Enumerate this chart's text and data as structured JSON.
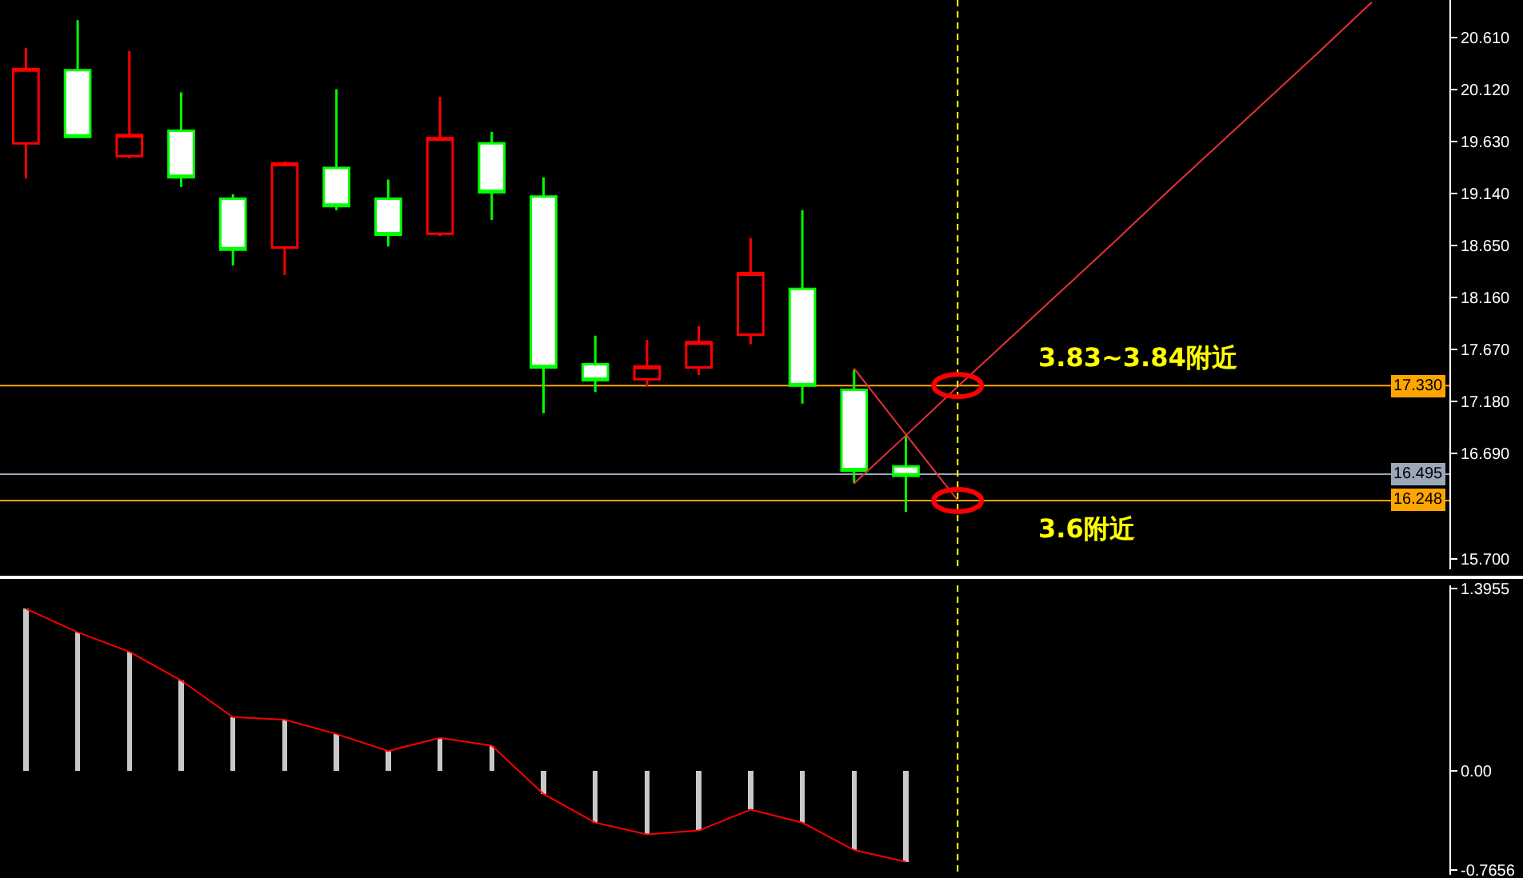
{
  "chart_data": [
    {
      "type": "candlestick",
      "categories": [
        null,
        null,
        null,
        null,
        null,
        null,
        null,
        null,
        null,
        null,
        null,
        null,
        null,
        null,
        null,
        null,
        null,
        null,
        null,
        null,
        null,
        null,
        null,
        null,
        null,
        null,
        null,
        null
      ],
      "ohlc": [
        [
          19.61,
          20.51,
          19.28,
          20.31
        ],
        [
          20.3,
          20.77,
          19.67,
          19.67
        ],
        [
          19.49,
          20.48,
          19.47,
          19.69
        ],
        [
          19.73,
          20.09,
          19.2,
          19.29
        ],
        [
          19.09,
          19.13,
          18.46,
          18.61
        ],
        [
          18.63,
          19.44,
          18.37,
          19.42
        ],
        [
          19.38,
          20.12,
          18.98,
          19.02
        ],
        [
          19.09,
          19.27,
          18.64,
          18.75
        ],
        [
          18.76,
          20.05,
          18.74,
          19.66
        ],
        [
          19.61,
          19.72,
          18.89,
          19.15
        ],
        [
          19.11,
          19.29,
          17.07,
          17.5
        ],
        [
          17.53,
          17.8,
          17.27,
          17.38
        ],
        [
          17.39,
          17.76,
          17.32,
          17.51
        ],
        [
          17.5,
          17.89,
          17.43,
          17.74
        ],
        [
          17.81,
          18.72,
          17.72,
          18.39
        ],
        [
          18.24,
          18.98,
          17.16,
          17.33
        ],
        [
          17.29,
          17.48,
          16.41,
          16.53
        ],
        [
          16.57,
          16.86,
          16.14,
          16.48
        ],
        null,
        null,
        null,
        null,
        null,
        null,
        null,
        null,
        null,
        null
      ],
      "series": [
        {
          "type": "line",
          "color": "#e8303a",
          "values": [
            null,
            null,
            null,
            null,
            null,
            null,
            null,
            null,
            null,
            null,
            null,
            null,
            null,
            null,
            null,
            null,
            16.41,
            16.86,
            17.32,
            17.77,
            18.22,
            18.67,
            19.13,
            19.58,
            20.03,
            20.48,
            20.94,
            null
          ]
        },
        {
          "type": "line",
          "color": "#e8303a",
          "values": [
            null,
            null,
            null,
            null,
            null,
            null,
            null,
            null,
            null,
            null,
            null,
            null,
            null,
            null,
            null,
            null,
            17.49,
            16.87,
            16.25,
            null,
            null,
            null,
            null,
            null,
            null,
            null,
            null,
            null
          ]
        }
      ],
      "ylim": [
        15.6,
        20.96
      ],
      "yticks": [
        {
          "value": 20.61,
          "label": "20.610"
        },
        {
          "value": 20.12,
          "label": "20.120"
        },
        {
          "value": 19.63,
          "label": "19.630"
        },
        {
          "value": 19.14,
          "label": "19.140"
        },
        {
          "value": 18.65,
          "label": "18.650"
        },
        {
          "value": 18.16,
          "label": "18.160"
        },
        {
          "value": 17.67,
          "label": "17.670"
        },
        {
          "value": 17.18,
          "label": "17.180"
        },
        {
          "value": 16.69,
          "label": "16.690"
        },
        {
          "value": 15.7,
          "label": "15.700"
        }
      ],
      "tick_labels": "y",
      "ref_lines": [
        {
          "axis": "y",
          "value": 17.33,
          "label": "17.330",
          "color": "#ffa500"
        },
        {
          "axis": "y",
          "value": 16.495,
          "label": "16.495",
          "color": "#9aa8b8"
        },
        {
          "axis": "y",
          "value": 16.248,
          "label": "16.248",
          "color": "#ffa500"
        }
      ],
      "annotations": [
        {
          "text": "3.83~3.84附近",
          "y": 17.33
        },
        {
          "text": "3.6附近",
          "y": 16.248
        }
      ]
    },
    {
      "type": "bar",
      "categories": [
        null,
        null,
        null,
        null,
        null,
        null,
        null,
        null,
        null,
        null,
        null,
        null,
        null,
        null,
        null,
        null,
        null,
        null,
        null,
        null,
        null,
        null,
        null,
        null,
        null,
        null,
        null,
        null
      ],
      "series": [
        {
          "type": "bar",
          "color": "#c8c8c8",
          "values": [
            1.24,
            1.06,
            0.91,
            0.69,
            0.41,
            0.39,
            0.28,
            0.15,
            0.25,
            0.19,
            -0.18,
            -0.4,
            -0.49,
            -0.46,
            -0.3,
            -0.4,
            -0.61,
            -0.7,
            null,
            null,
            null,
            null,
            null,
            null,
            null,
            null,
            null,
            null
          ]
        },
        {
          "type": "line",
          "color": "#ff0000",
          "values": [
            1.24,
            1.06,
            0.91,
            0.69,
            0.41,
            0.39,
            0.28,
            0.15,
            0.25,
            0.19,
            -0.18,
            -0.4,
            -0.49,
            -0.46,
            -0.3,
            -0.4,
            -0.61,
            -0.7,
            null,
            null,
            null,
            null,
            null,
            null,
            null,
            null,
            null,
            null
          ]
        }
      ],
      "ylim": [
        -0.8,
        1.42
      ],
      "yticks": [
        {
          "value": 1.3955,
          "label": "1.3955"
        },
        {
          "value": 0,
          "label": "0.00"
        },
        {
          "value": -0.7656,
          "label": "-0.7656"
        }
      ],
      "tick_labels": "y"
    }
  ]
}
